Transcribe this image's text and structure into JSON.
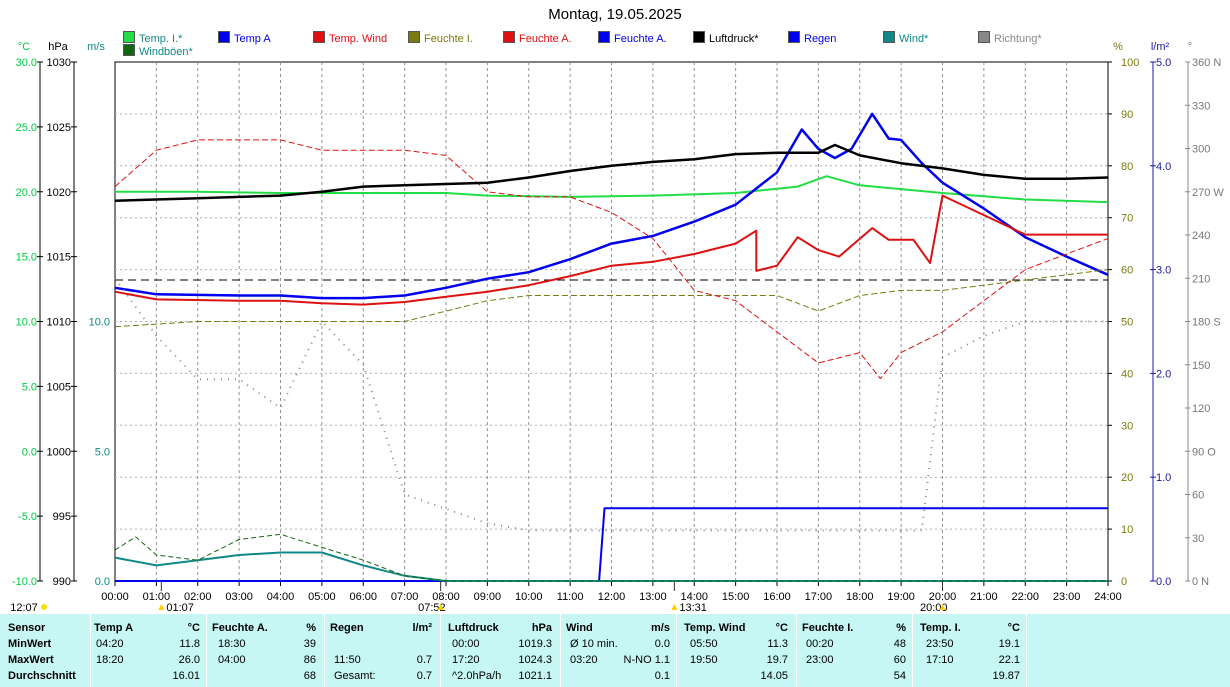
{
  "title": "Montag, 19.05.2025",
  "legend": [
    {
      "label": "Temp. I.*",
      "color": "#22dd44"
    },
    {
      "label": "Temp A",
      "color": "#0000ee"
    },
    {
      "label": "Temp. Wind",
      "color": "#dd1111"
    },
    {
      "label": "Feuchte I.",
      "color": "#7a7a10"
    },
    {
      "label": "Feuchte A.",
      "color": "#dd1111"
    },
    {
      "label": "Feuchte A.",
      "color": "#0000ee"
    },
    {
      "label": "Luftdruck*",
      "color": "#000000"
    },
    {
      "label": "Regen",
      "color": "#0000ee"
    },
    {
      "label": "Wind*",
      "color": "#118888"
    },
    {
      "label": "Richtung*",
      "color": "#888888"
    },
    {
      "label": "Windböen*",
      "color": "#116611"
    }
  ],
  "units": {
    "celsius": "°C",
    "hpa": "hPa",
    "ms": "m/s",
    "percent": "%",
    "rain": "l/m²",
    "deg": "°"
  },
  "axes": {
    "celsius_ticks": [
      "30.0",
      "25.0",
      "20.0",
      "15.0",
      "10.0",
      "5.0",
      "0.0",
      "-5.0",
      "-10.0"
    ],
    "hpa_ticks": [
      "1030",
      "1025",
      "1020",
      "1015",
      "1010",
      "1005",
      "1000",
      "995",
      "990"
    ],
    "ms_ticks": [
      "10.0",
      "5.0",
      "0.0"
    ],
    "percent_ticks": [
      "100",
      "90",
      "80",
      "70",
      "60",
      "50",
      "40",
      "30",
      "20",
      "10",
      "0"
    ],
    "rain_ticks": [
      "5.0",
      "4.0",
      "3.0",
      "2.0",
      "1.0",
      "0.0"
    ],
    "dir_ticks": [
      "360 N",
      "330",
      "300",
      "270 W",
      "240",
      "210",
      "180 S",
      "150",
      "120",
      "90 O",
      "60",
      "30",
      "0  N"
    ],
    "time_ticks": [
      "00:00",
      "01:00",
      "02:00",
      "03:00",
      "04:00",
      "05:00",
      "06:00",
      "07:00",
      "08:00",
      "09:00",
      "10:00",
      "11:00",
      "12:00",
      "13:00",
      "14:00",
      "15:00",
      "16:00",
      "17:00",
      "18:00",
      "19:00",
      "20:00",
      "21:00",
      "22:00",
      "23:00",
      "24:00"
    ]
  },
  "sun": {
    "sunrise": "12:07",
    "markers": [
      "01:07",
      "07:52",
      "13:31",
      "20:00"
    ]
  },
  "chart_data": {
    "type": "line",
    "x_unit": "hours",
    "xlim": [
      0,
      24
    ],
    "series": [
      {
        "name": "Temp. I.*",
        "axis": "celsius",
        "color": "#22dd44",
        "points": [
          [
            0,
            20.0
          ],
          [
            2,
            20.0
          ],
          [
            4,
            19.9
          ],
          [
            6,
            19.9
          ],
          [
            8,
            19.9
          ],
          [
            9,
            19.7
          ],
          [
            11,
            19.6
          ],
          [
            13,
            19.7
          ],
          [
            15,
            19.9
          ],
          [
            16.5,
            20.4
          ],
          [
            17.2,
            21.2
          ],
          [
            18,
            20.5
          ],
          [
            20,
            19.9
          ],
          [
            22,
            19.4
          ],
          [
            24,
            19.2
          ]
        ]
      },
      {
        "name": "Temp A",
        "axis": "celsius",
        "color": "#0000ee",
        "points": [
          [
            0,
            12.6
          ],
          [
            1,
            12.1
          ],
          [
            3,
            12.0
          ],
          [
            4,
            12.0
          ],
          [
            5,
            11.8
          ],
          [
            6,
            11.8
          ],
          [
            7,
            12.0
          ],
          [
            8,
            12.6
          ],
          [
            9,
            13.3
          ],
          [
            10,
            13.8
          ],
          [
            11,
            14.8
          ],
          [
            12,
            16.0
          ],
          [
            13,
            16.6
          ],
          [
            14,
            17.7
          ],
          [
            15,
            19.0
          ],
          [
            16,
            21.5
          ],
          [
            16.6,
            24.8
          ],
          [
            17,
            23.3
          ],
          [
            17.4,
            22.6
          ],
          [
            17.8,
            23.3
          ],
          [
            18.3,
            26.0
          ],
          [
            18.7,
            24.1
          ],
          [
            19,
            24.0
          ],
          [
            19.5,
            22.2
          ],
          [
            20,
            20.7
          ],
          [
            21,
            18.7
          ],
          [
            22,
            16.5
          ],
          [
            23,
            15.0
          ],
          [
            24,
            13.6
          ]
        ]
      },
      {
        "name": "Temp. Wind",
        "axis": "celsius",
        "color": "#dd1111",
        "points": [
          [
            0,
            12.3
          ],
          [
            1,
            11.7
          ],
          [
            3,
            11.6
          ],
          [
            4,
            11.6
          ],
          [
            5,
            11.4
          ],
          [
            6,
            11.3
          ],
          [
            7,
            11.5
          ],
          [
            8,
            11.9
          ],
          [
            9,
            12.3
          ],
          [
            10,
            12.8
          ],
          [
            11,
            13.5
          ],
          [
            12,
            14.3
          ],
          [
            13,
            14.6
          ],
          [
            14,
            15.2
          ],
          [
            15,
            16.0
          ],
          [
            15.5,
            17.0
          ],
          [
            15.5,
            13.9
          ],
          [
            16,
            14.3
          ],
          [
            16.5,
            16.5
          ],
          [
            17,
            15.5
          ],
          [
            17.5,
            15.0
          ],
          [
            18.3,
            17.2
          ],
          [
            18.7,
            16.3
          ],
          [
            19.3,
            16.3
          ],
          [
            19.7,
            14.5
          ],
          [
            20,
            19.7
          ],
          [
            21,
            18.2
          ],
          [
            22,
            16.7
          ],
          [
            24,
            16.7
          ]
        ]
      },
      {
        "name": "Feuchte I.",
        "axis": "percent",
        "color": "#7a7a10",
        "points": [
          [
            0,
            49
          ],
          [
            2,
            50
          ],
          [
            4,
            50
          ],
          [
            6,
            50
          ],
          [
            7,
            50
          ],
          [
            8,
            52
          ],
          [
            9,
            54
          ],
          [
            10,
            55
          ],
          [
            12,
            55
          ],
          [
            14,
            55
          ],
          [
            16,
            55
          ],
          [
            17,
            52
          ],
          [
            18,
            55
          ],
          [
            19,
            56
          ],
          [
            20,
            56
          ],
          [
            22,
            58
          ],
          [
            24,
            60
          ]
        ]
      },
      {
        "name": "Feuchte A.",
        "axis": "percent",
        "color": "#dd1111",
        "points": [
          [
            0,
            76
          ],
          [
            1,
            83
          ],
          [
            2,
            85
          ],
          [
            3,
            85
          ],
          [
            4,
            85
          ],
          [
            5,
            83
          ],
          [
            6,
            83
          ],
          [
            7,
            83
          ],
          [
            8,
            82
          ],
          [
            9,
            75
          ],
          [
            10,
            74
          ],
          [
            11,
            74
          ],
          [
            12,
            71
          ],
          [
            13,
            66
          ],
          [
            14,
            56
          ],
          [
            15,
            54
          ],
          [
            16,
            48
          ],
          [
            17,
            42
          ],
          [
            18,
            44
          ],
          [
            18.5,
            39
          ],
          [
            19,
            44
          ],
          [
            20,
            48
          ],
          [
            21,
            54
          ],
          [
            22,
            60
          ],
          [
            23,
            63
          ],
          [
            24,
            66
          ]
        ]
      },
      {
        "name": "Luftdruck*",
        "axis": "hpa",
        "color": "#000000",
        "points": [
          [
            0,
            1019.3
          ],
          [
            2,
            1019.5
          ],
          [
            4,
            1019.7
          ],
          [
            5,
            1020.0
          ],
          [
            6,
            1020.4
          ],
          [
            7,
            1020.5
          ],
          [
            8,
            1020.6
          ],
          [
            9,
            1020.7
          ],
          [
            10,
            1021.1
          ],
          [
            11,
            1021.6
          ],
          [
            12,
            1022.0
          ],
          [
            13,
            1022.3
          ],
          [
            14,
            1022.5
          ],
          [
            15,
            1022.9
          ],
          [
            16,
            1023.0
          ],
          [
            17,
            1023.0
          ],
          [
            17.4,
            1023.6
          ],
          [
            18,
            1022.8
          ],
          [
            19,
            1022.2
          ],
          [
            20,
            1021.8
          ],
          [
            21,
            1021.3
          ],
          [
            22,
            1021.0
          ],
          [
            23,
            1021.0
          ],
          [
            24,
            1021.1
          ]
        ]
      },
      {
        "name": "Regen",
        "axis": "rain",
        "color": "#0000ee",
        "points": [
          [
            0,
            0
          ],
          [
            11.7,
            0
          ],
          [
            11.83,
            0.7
          ],
          [
            24,
            0.7
          ]
        ]
      },
      {
        "name": "Wind*",
        "axis": "ms",
        "color": "#118888",
        "points": [
          [
            0,
            0.9
          ],
          [
            1,
            0.6
          ],
          [
            2,
            0.8
          ],
          [
            3,
            1.0
          ],
          [
            4,
            1.1
          ],
          [
            5,
            1.1
          ],
          [
            6,
            0.6
          ],
          [
            7,
            0.2
          ],
          [
            8,
            0.0
          ],
          [
            24,
            0.0
          ]
        ]
      },
      {
        "name": "Windböen*",
        "axis": "ms",
        "color": "#116611",
        "points": [
          [
            0,
            1.2
          ],
          [
            0.5,
            1.7
          ],
          [
            1,
            1.0
          ],
          [
            2,
            0.8
          ],
          [
            3,
            1.6
          ],
          [
            4,
            1.8
          ],
          [
            5,
            1.3
          ],
          [
            6,
            0.8
          ],
          [
            7,
            0.2
          ],
          [
            8,
            0.0
          ],
          [
            24,
            0.0
          ]
        ]
      },
      {
        "name": "Richtung*",
        "axis": "deg",
        "color": "#888888",
        "points": [
          [
            0,
            210
          ],
          [
            1,
            170
          ],
          [
            2,
            140
          ],
          [
            3,
            140
          ],
          [
            4,
            120
          ],
          [
            5,
            180
          ],
          [
            6,
            150
          ],
          [
            7,
            60
          ],
          [
            8,
            50
          ],
          [
            9,
            40
          ],
          [
            10,
            35
          ],
          [
            12,
            35
          ],
          [
            14,
            35
          ],
          [
            16,
            35
          ],
          [
            18,
            35
          ],
          [
            19.5,
            35
          ],
          [
            20,
            155
          ],
          [
            21,
            170
          ],
          [
            22,
            180
          ],
          [
            23,
            180
          ],
          [
            24,
            180
          ]
        ]
      }
    ],
    "reference_line": {
      "axis": "celsius",
      "value": 13.2
    }
  },
  "stats": {
    "headers": [
      "Sensor",
      "Temp A",
      "°C",
      "Feuchte A.",
      "%",
      "Regen",
      "l/m²",
      "Luftdruck",
      "hPa",
      "Wind",
      "m/s",
      "Temp. Wind",
      "°C",
      "Feuchte I.",
      "%",
      "Temp. I.",
      "°C"
    ],
    "rows": [
      {
        "label": "MinWert",
        "cells": [
          "04:20",
          "11.8",
          "18:30",
          "39",
          "",
          "",
          "00:00",
          "1019.3",
          "Ø 10 min.",
          "0.0",
          "05:50",
          "11.3",
          "00:20",
          "48",
          "23:50",
          "19.1"
        ]
      },
      {
        "label": "MaxWert",
        "cells": [
          "18:20",
          "26.0",
          "04:00",
          "86",
          "11:50",
          "0.7",
          "17:20",
          "1024.3",
          "03:20",
          "N-NO 1.1",
          "19:50",
          "19.7",
          "23:00",
          "60",
          "17:10",
          "22.1"
        ]
      },
      {
        "label": "Durchschnitt",
        "cells": [
          "",
          "16.01",
          "",
          "68",
          "Gesamt:",
          "0.7",
          "^2.0hPa/h",
          "1021.1",
          "",
          "0.1",
          "",
          "14.05",
          "",
          "54",
          "",
          "19.87"
        ]
      }
    ]
  }
}
